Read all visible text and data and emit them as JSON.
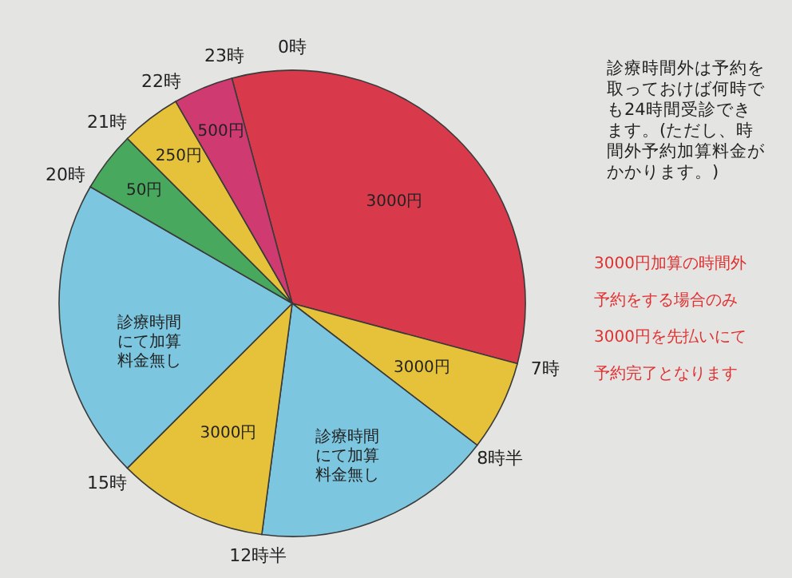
{
  "chart_data": {
    "type": "pie",
    "categories": [
      "3000円",
      "3000円",
      "診療時間にて加算料金無し",
      "3000円",
      "診療時間にて加算料金無し",
      "50円",
      "250円",
      "500円"
    ],
    "values": [
      33.33,
      6.25,
      16.67,
      10.42,
      20.83,
      4.17,
      4.17,
      4.16
    ],
    "colors": [
      "#d83a4c",
      "#e6c23a",
      "#7cc6df",
      "#e6c23a",
      "#7cc6df",
      "#48a85e",
      "#e6c23a",
      "#cf3a70"
    ],
    "annotations": [
      "0時",
      "7時",
      "8時半",
      "12時半",
      "15時",
      "20時",
      "21時",
      "22時",
      "23時",
      "診療時間外は予約を取っておけば何時でも24時間受診できます。(ただし、時間外予約加算料金がかかります。)",
      "3000円加算の時間外",
      "予約をする場合のみ",
      "3000円を先払いにて",
      "予約完了となります"
    ]
  }
}
